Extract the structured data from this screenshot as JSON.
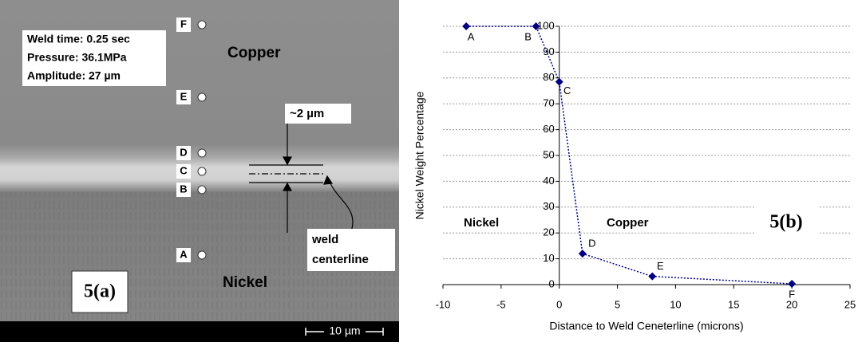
{
  "micrograph": {
    "weld_time": "Weld time: 0.25 sec",
    "pressure": "Pressure: 36.1MPa",
    "amplitude": "Amplitude: 27 µm",
    "copper": "Copper",
    "nickel": "Nickel",
    "thickness": "~2 µm",
    "weld_label": [
      "weld",
      "centerline"
    ],
    "panel": "5(a)",
    "scale": "10 µm",
    "points": [
      "F",
      "E",
      "D",
      "C",
      "B",
      "A"
    ]
  },
  "chart_data": {
    "type": "line",
    "x": [
      -8,
      -2,
      0,
      2,
      8,
      20
    ],
    "values": [
      100,
      100,
      78.5,
      12,
      3.2,
      0.3
    ],
    "point_labels": [
      "A",
      "B",
      "C",
      "D",
      "E",
      "F"
    ],
    "color": "#000080",
    "xlim": [
      -10,
      25
    ],
    "xticks": [
      -10,
      -5,
      0,
      5,
      10,
      15,
      20,
      25
    ],
    "ylim": [
      0,
      100
    ],
    "yticks": [
      0,
      10,
      20,
      30,
      40,
      50,
      60,
      70,
      80,
      90,
      100
    ],
    "grid": true,
    "x_label": "Distance to Weld Ceneterline (microns)",
    "y_label": "Nickel Weight Percentage",
    "annotations": [
      "Nickel",
      "Copper",
      "5(b)"
    ]
  }
}
